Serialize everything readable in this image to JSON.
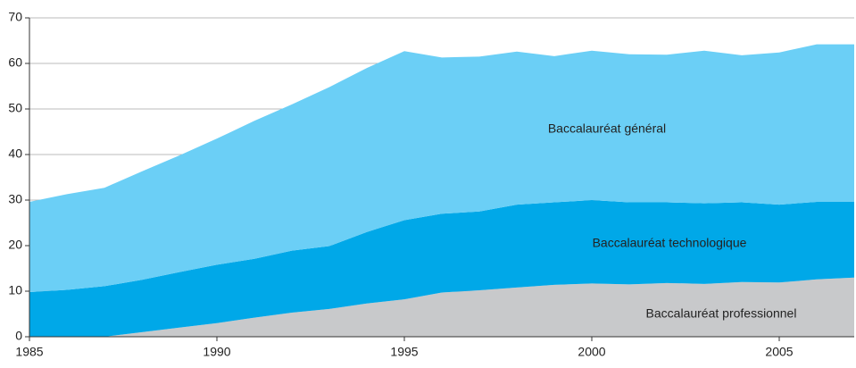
{
  "chart_data": {
    "type": "stacked_area",
    "x": [
      1985,
      1986,
      1987,
      1988,
      1989,
      1990,
      1991,
      1992,
      1993,
      1994,
      1995,
      1996,
      1997,
      1998,
      1999,
      2000,
      2001,
      2002,
      2003,
      2004,
      2005,
      2006,
      2007
    ],
    "series": [
      {
        "name": "Baccalauréat professionnel",
        "color": "#c8c9cb",
        "values": [
          0,
          0,
          0,
          1,
          2,
          3,
          4.2,
          5.3,
          6.1,
          7.3,
          8.2,
          9.7,
          10.2,
          10.8,
          11.4,
          11.7,
          11.5,
          11.8,
          11.6,
          12,
          11.9,
          12.6,
          13
        ]
      },
      {
        "name": "Baccalauréat technologique",
        "color": "#00a8e8",
        "values": [
          9.8,
          10.3,
          11.1,
          11.5,
          12.2,
          12.8,
          12.9,
          13.6,
          13.8,
          15.7,
          17.4,
          17.3,
          17.3,
          18.2,
          18.1,
          18.3,
          18,
          17.7,
          17.7,
          17.5,
          17.1,
          17,
          16.6
        ]
      },
      {
        "name": "Baccalauréat général",
        "color": "#6bcff6",
        "values": [
          19.8,
          21,
          21.6,
          23.8,
          25.6,
          27.7,
          30.3,
          32.1,
          34.9,
          36,
          37.1,
          34.3,
          34,
          33.6,
          32.1,
          32.8,
          32.5,
          32.4,
          33.5,
          32.3,
          33.4,
          34.6,
          34.6
        ]
      }
    ],
    "xlim": [
      1985,
      2007
    ],
    "xticks": [
      1985,
      1990,
      1995,
      2000,
      2005
    ],
    "ylim": [
      0,
      70
    ],
    "yticks": [
      0,
      10,
      20,
      30,
      40,
      50,
      60,
      70
    ],
    "grid": true
  }
}
